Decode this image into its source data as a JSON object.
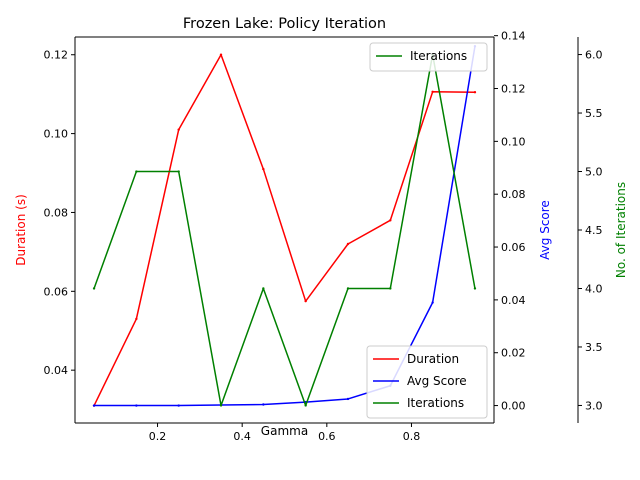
{
  "chart_data": {
    "type": "line",
    "title": "Frozen Lake: Policy Iteration",
    "xlabel": "Gamma",
    "x": [
      0.05,
      0.15,
      0.25,
      0.35,
      0.45,
      0.55,
      0.65,
      0.75,
      0.85,
      0.95
    ],
    "xlim": [
      0.005,
      0.995
    ],
    "xticks": [
      0.2,
      0.4,
      0.6,
      0.8
    ],
    "xtick_labels": [
      "0.2",
      "0.4",
      "0.6",
      "0.8"
    ],
    "grid": false,
    "axes": [
      {
        "name": "left",
        "label": "Duration (s)",
        "color": "#ff0000",
        "ylim": [
          0.0266,
          0.1245
        ],
        "ticks": [
          0.04,
          0.06,
          0.08,
          0.1,
          0.12
        ],
        "tick_labels": [
          "0.04",
          "0.06",
          "0.08",
          "0.10",
          "0.12"
        ]
      },
      {
        "name": "right",
        "label": "Avg Score",
        "color": "#0000ff",
        "ylim": [
          -0.0066,
          0.1395
        ],
        "ticks": [
          0.0,
          0.02,
          0.04,
          0.06,
          0.08,
          0.1,
          0.12,
          0.14
        ],
        "tick_labels": [
          "0.00",
          "0.02",
          "0.04",
          "0.06",
          "0.08",
          "0.10",
          "0.12",
          "0.14"
        ]
      },
      {
        "name": "right2",
        "label": "No. of Iterations",
        "color": "#008000",
        "ylim": [
          2.85,
          6.15
        ],
        "ticks": [
          3.0,
          3.5,
          4.0,
          4.5,
          5.0,
          5.5,
          6.0
        ],
        "tick_labels": [
          "3.0",
          "3.5",
          "4.0",
          "4.5",
          "5.0",
          "5.5",
          "6.0"
        ]
      }
    ],
    "series": [
      {
        "name": "Duration",
        "axis": "left",
        "color": "#ff0000",
        "values": [
          0.031,
          0.053,
          0.101,
          0.12,
          0.091,
          0.0575,
          0.072,
          0.078,
          0.1106,
          0.1105
        ]
      },
      {
        "name": "Avg Score",
        "axis": "right",
        "color": "#0000ff",
        "values": [
          0.0,
          0.0,
          0.0,
          0.0002,
          0.0004,
          0.0013,
          0.0025,
          0.0075,
          0.039,
          0.136
        ]
      },
      {
        "name": "Iterations",
        "axis": "right2",
        "color": "#008000",
        "values": [
          4,
          5,
          5,
          3,
          4,
          3,
          4,
          4,
          6,
          4
        ]
      }
    ],
    "legend_main": {
      "placement": "lower-right",
      "entries": [
        "Duration",
        "Avg Score",
        "Iterations"
      ]
    },
    "legend_secondary": {
      "placement": "upper-right",
      "entries": [
        "Iterations"
      ]
    }
  }
}
